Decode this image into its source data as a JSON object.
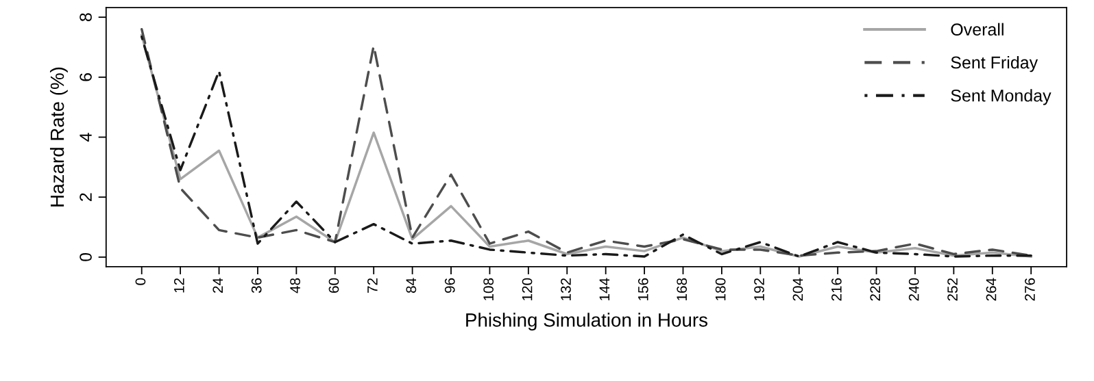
{
  "chart_data": {
    "type": "line",
    "xlabel": "Phishing Simulation in Hours",
    "ylabel": "Hazard Rate (%)",
    "x": [
      0,
      12,
      24,
      36,
      48,
      60,
      72,
      84,
      96,
      108,
      120,
      132,
      144,
      156,
      168,
      180,
      192,
      204,
      216,
      228,
      240,
      252,
      264,
      276
    ],
    "xlim": [
      -11.04,
      287.04
    ],
    "ylim": [
      -0.32,
      8.32
    ],
    "xticks": [
      0,
      12,
      24,
      36,
      48,
      60,
      72,
      84,
      96,
      108,
      120,
      132,
      144,
      156,
      168,
      180,
      192,
      204,
      216,
      228,
      240,
      252,
      264,
      276
    ],
    "yticks": [
      0,
      2,
      4,
      6,
      8
    ],
    "grid": false,
    "legend": "top right",
    "series": [
      {
        "name": "Overall",
        "color": "#a6a6a6",
        "line_style": "solid",
        "values": [
          7.4,
          2.6,
          3.55,
          0.65,
          1.35,
          0.5,
          4.15,
          0.6,
          1.7,
          0.35,
          0.55,
          0.1,
          0.35,
          0.2,
          0.65,
          0.2,
          0.35,
          0.02,
          0.35,
          0.15,
          0.3,
          0.05,
          0.15,
          0.02
        ]
      },
      {
        "name": "Sent Friday",
        "color": "#4d4d4d",
        "line_style": "dashed",
        "values": [
          7.6,
          2.3,
          0.9,
          0.65,
          0.9,
          0.5,
          7.05,
          0.65,
          2.75,
          0.45,
          0.85,
          0.15,
          0.55,
          0.35,
          0.6,
          0.25,
          0.25,
          0.05,
          0.15,
          0.2,
          0.45,
          0.1,
          0.25,
          0.05
        ]
      },
      {
        "name": "Sent Monday",
        "color": "#1a1a1a",
        "line_style": "dashdot",
        "values": [
          7.35,
          2.9,
          6.2,
          0.45,
          1.85,
          0.5,
          1.1,
          0.45,
          0.55,
          0.25,
          0.15,
          0.05,
          0.1,
          0.02,
          0.75,
          0.1,
          0.5,
          0.02,
          0.5,
          0.15,
          0.1,
          0.02,
          0.05,
          0.05
        ]
      }
    ]
  }
}
